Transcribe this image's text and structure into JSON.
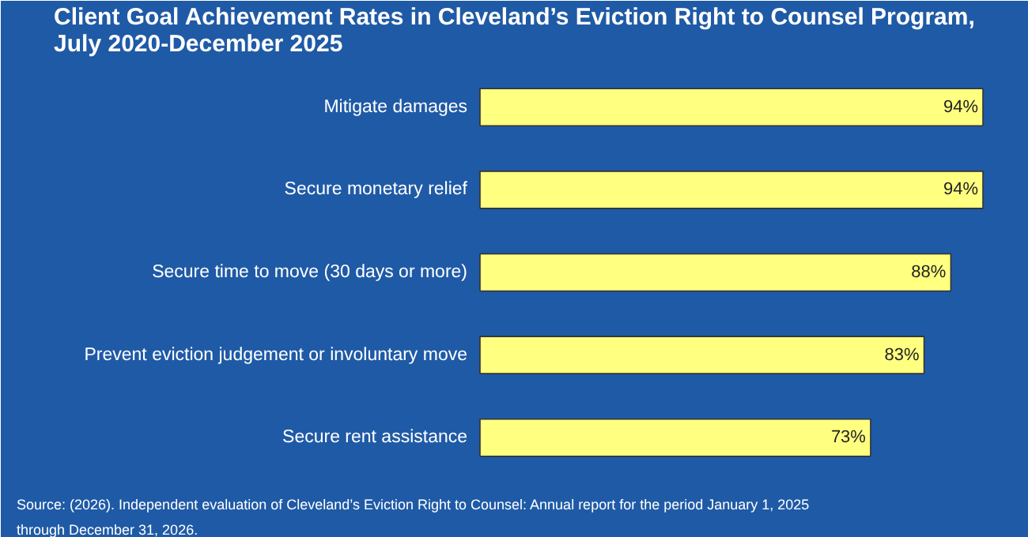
{
  "chart_data": {
    "type": "bar",
    "orientation": "horizontal",
    "title": "Client Goal Achievement Rates in Cleveland’s Eviction Right to Counsel Program, July 2020-December 2025",
    "categories": [
      "Mitigate damages",
      "Secure monetary relief",
      "Secure time to move (30 days or more)",
      "Prevent eviction judgement or involuntary move",
      "Secure rent assistance"
    ],
    "values": [
      94,
      94,
      88,
      83,
      73
    ],
    "value_labels": [
      "94%",
      "94%",
      "88%",
      "83%",
      "73%"
    ],
    "color": "#ffff80",
    "annotations": [
      "Source: (2026). Independent evaluation of Cleveland’s Eviction Right to Counsel: Annual report for the period January 1, 2025 through December 31, 2026."
    ],
    "grid": false
  }
}
